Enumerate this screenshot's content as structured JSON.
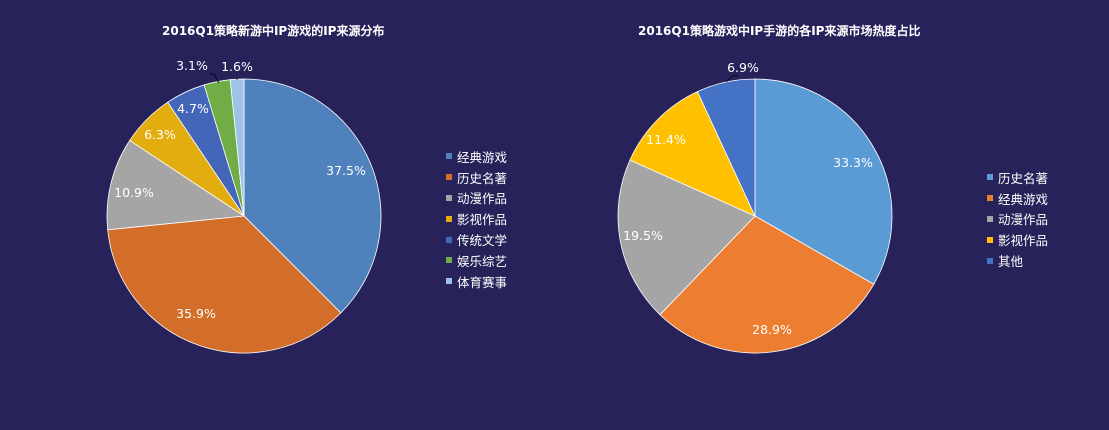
{
  "chart_data": [
    {
      "type": "pie",
      "title": "2016Q1策略新游中IP游戏的IP来源分布",
      "categories": [
        "经典游戏",
        "历史名著",
        "动漫作品",
        "影视作品",
        "传统文学",
        "娱乐综艺",
        "体育赛事"
      ],
      "values": [
        37.5,
        35.9,
        10.9,
        6.3,
        4.7,
        3.1,
        1.6
      ],
      "labels": [
        "37.5%",
        "35.9%",
        "10.9%",
        "6.3%",
        "4.7%",
        "3.1%",
        "1.6%"
      ],
      "colors": [
        "#4f81bd",
        "#d36d2a",
        "#a5a5a5",
        "#e3ac0f",
        "#4466b8",
        "#70ad47",
        "#9dc3e6"
      ],
      "legend_position": "right",
      "start_angle": 0,
      "direction": "clockwise"
    },
    {
      "type": "pie",
      "title": "2016Q1策略游戏中IP手游的各IP来源市场热度占比",
      "categories": [
        "历史名著",
        "经典游戏",
        "动漫作品",
        "影视作品",
        "其他"
      ],
      "values": [
        33.3,
        28.9,
        19.5,
        11.4,
        6.9
      ],
      "labels": [
        "33.3%",
        "28.9%",
        "19.5%",
        "11.4%",
        "6.9%"
      ],
      "colors": [
        "#5b9bd5",
        "#ed7d31",
        "#a5a5a5",
        "#ffc000",
        "#4472c4"
      ],
      "legend_position": "right",
      "start_angle": 0,
      "direction": "clockwise"
    }
  ]
}
